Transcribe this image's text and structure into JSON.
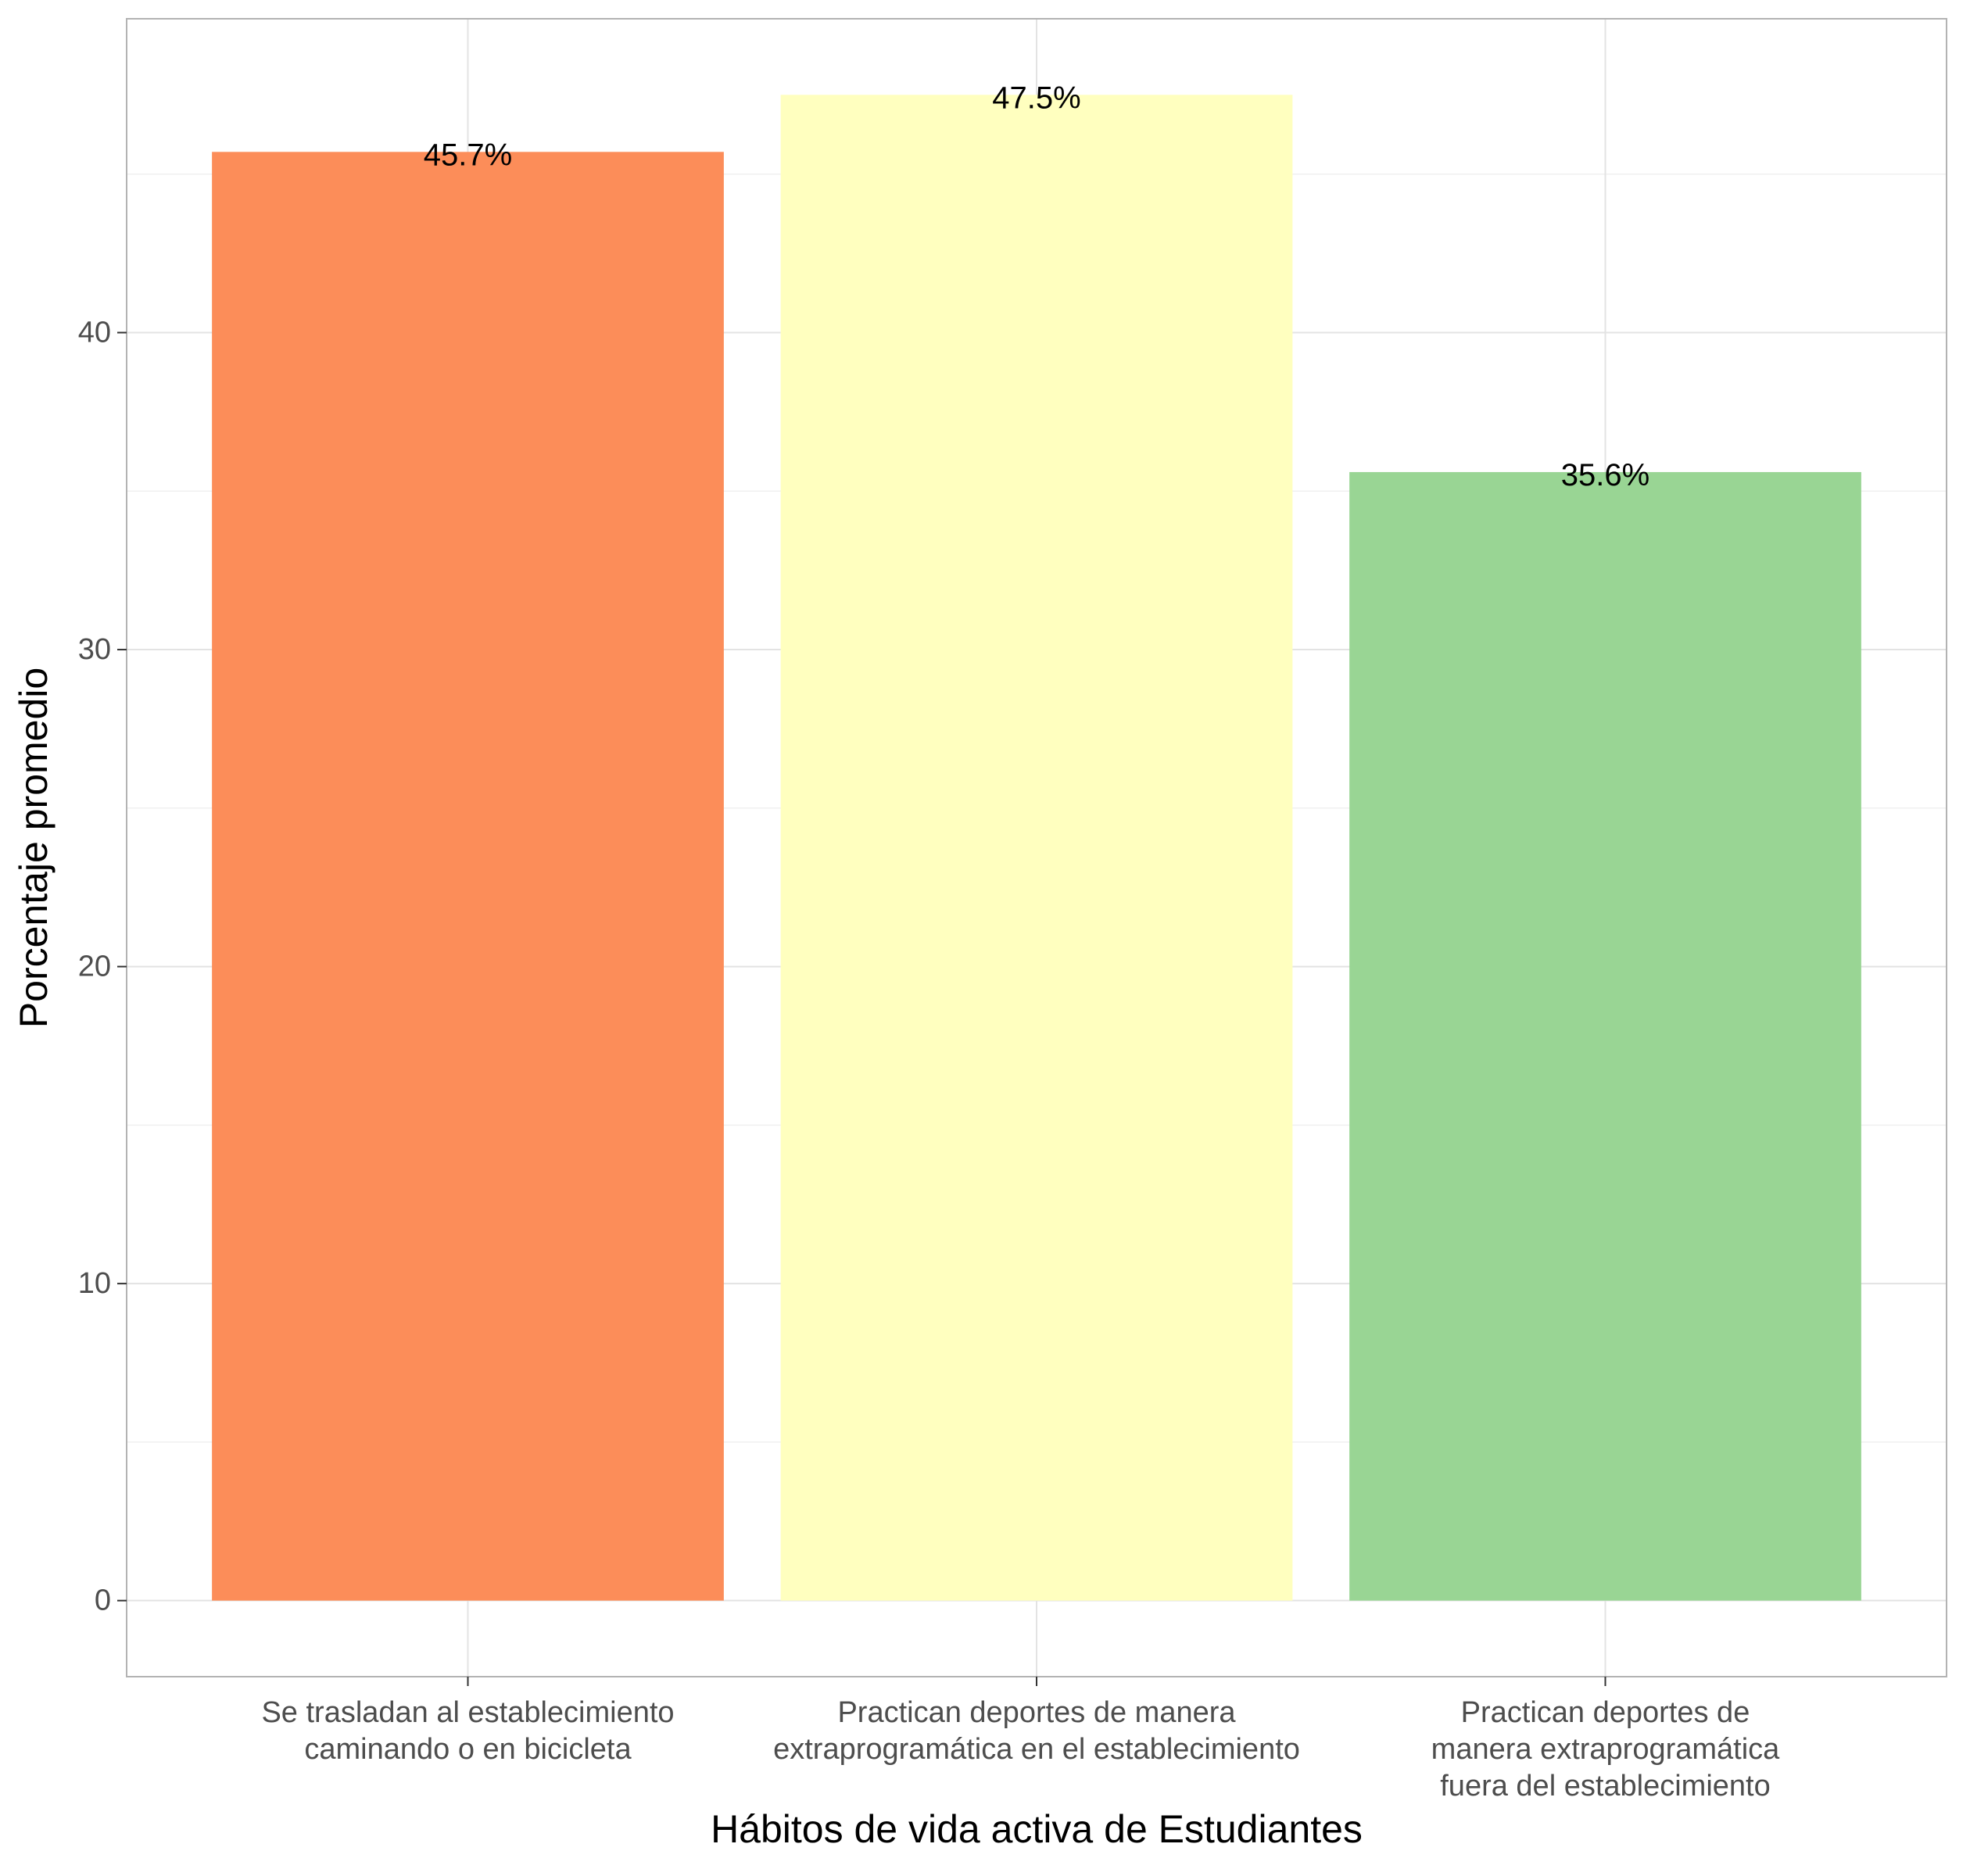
{
  "chart_data": {
    "type": "bar",
    "xlabel": "Hábitos de vida activa de Estudiantes",
    "ylabel": "Porcentaje promedio",
    "ylim": [
      -2.4,
      49.9
    ],
    "yticks": [
      0,
      10,
      20,
      30,
      40
    ],
    "grid": true,
    "legend": "none",
    "categories": [
      [
        "Se trasladan al establecimiento",
        "caminando o en bicicleta"
      ],
      [
        "Practican deportes de manera",
        "extraprogramática en el establecimiento"
      ],
      [
        "Practican deportes de",
        "manera extraprogramática",
        "fuera del establecimiento"
      ]
    ],
    "values": [
      45.7,
      47.5,
      35.6
    ],
    "data_labels": [
      "45.7%",
      "47.5%",
      "35.6%"
    ],
    "colors": [
      "#FC8D59",
      "#FFFFBF",
      "#99D594"
    ]
  }
}
